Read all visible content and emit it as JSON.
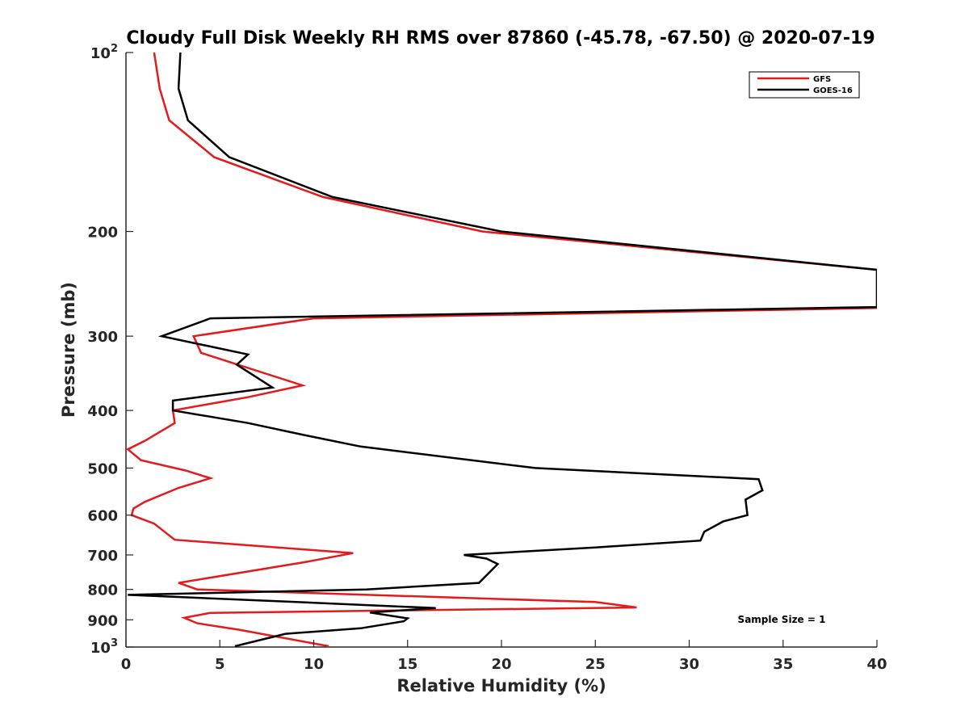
{
  "chart_data": {
    "type": "line",
    "title": "Cloudy Full Disk Weekly RH RMS over 87860 (-45.78, -67.50) @ 2020-07-19",
    "xlabel": "Relative Humidity (%)",
    "ylabel": "Pressure (mb)",
    "xlim": [
      0,
      40
    ],
    "ylim": [
      100,
      1000
    ],
    "yscale": "log",
    "y_direction": "reversed",
    "grid": false,
    "legend_position": "top-right",
    "x_ticks": [
      {
        "value": 0,
        "label": "0"
      },
      {
        "value": 5,
        "label": "5"
      },
      {
        "value": 10,
        "label": "10"
      },
      {
        "value": 15,
        "label": "15"
      },
      {
        "value": 20,
        "label": "20"
      },
      {
        "value": 25,
        "label": "25"
      },
      {
        "value": 30,
        "label": "30"
      },
      {
        "value": 35,
        "label": "35"
      },
      {
        "value": 40,
        "label": "40"
      }
    ],
    "y_ticks": [
      {
        "value": 100,
        "base": "10",
        "exp": "2"
      },
      {
        "value": 200,
        "base": "200",
        "exp": ""
      },
      {
        "value": 300,
        "base": "300",
        "exp": ""
      },
      {
        "value": 400,
        "base": "400",
        "exp": ""
      },
      {
        "value": 500,
        "base": "500",
        "exp": ""
      },
      {
        "value": 600,
        "base": "600",
        "exp": ""
      },
      {
        "value": 700,
        "base": "700",
        "exp": ""
      },
      {
        "value": 800,
        "base": "800",
        "exp": ""
      },
      {
        "value": 900,
        "base": "900",
        "exp": ""
      },
      {
        "value": 1000,
        "base": "10",
        "exp": "3"
      }
    ],
    "annotation": "Sample Size = 1",
    "series": [
      {
        "name": "GFS",
        "color": "#e41a1c",
        "points": [
          [
            1.5,
            100
          ],
          [
            1.8,
            115
          ],
          [
            2.3,
            130
          ],
          [
            4.7,
            150
          ],
          [
            10.5,
            175
          ],
          [
            19.0,
            200
          ],
          [
            40.0,
            232
          ],
          [
            40.0,
            269
          ],
          [
            10.0,
            280
          ],
          [
            3.6,
            300
          ],
          [
            4.0,
            320
          ],
          [
            9.4,
            363
          ],
          [
            6.5,
            380
          ],
          [
            2.5,
            400
          ],
          [
            2.6,
            420
          ],
          [
            1.0,
            450
          ],
          [
            0.1,
            465
          ],
          [
            0.8,
            485
          ],
          [
            3.2,
            505
          ],
          [
            4.5,
            520
          ],
          [
            2.8,
            540
          ],
          [
            1.0,
            570
          ],
          [
            0.4,
            585
          ],
          [
            0.3,
            600
          ],
          [
            1.5,
            620
          ],
          [
            2.6,
            660
          ],
          [
            12.1,
            695
          ],
          [
            9.5,
            720
          ],
          [
            2.8,
            780
          ],
          [
            3.8,
            800
          ],
          [
            25.0,
            840
          ],
          [
            27.2,
            858
          ],
          [
            4.5,
            876
          ],
          [
            3.1,
            893
          ],
          [
            3.8,
            912
          ],
          [
            6.0,
            935
          ],
          [
            10.8,
            997
          ]
        ]
      },
      {
        "name": "GOES-16",
        "color": "#000000",
        "points": [
          [
            2.9,
            100
          ],
          [
            2.8,
            115
          ],
          [
            3.3,
            130
          ],
          [
            5.5,
            150
          ],
          [
            11.0,
            175
          ],
          [
            20.0,
            200
          ],
          [
            40.0,
            232
          ],
          [
            40.0,
            268
          ],
          [
            4.5,
            280
          ],
          [
            1.9,
            300
          ],
          [
            6.5,
            322
          ],
          [
            5.9,
            335
          ],
          [
            7.8,
            366
          ],
          [
            2.5,
            385
          ],
          [
            2.5,
            400
          ],
          [
            6.5,
            420
          ],
          [
            9.5,
            440
          ],
          [
            12.5,
            460
          ],
          [
            21.8,
            500
          ],
          [
            33.7,
            522
          ],
          [
            33.9,
            545
          ],
          [
            33.0,
            565
          ],
          [
            33.1,
            600
          ],
          [
            31.8,
            615
          ],
          [
            30.8,
            640
          ],
          [
            30.6,
            662
          ],
          [
            25.0,
            680
          ],
          [
            18.0,
            700
          ],
          [
            19.2,
            710
          ],
          [
            19.8,
            725
          ],
          [
            18.8,
            780
          ],
          [
            12.8,
            800
          ],
          [
            0.1,
            817
          ],
          [
            11.0,
            845
          ],
          [
            16.5,
            860
          ],
          [
            13.0,
            875
          ],
          [
            15.0,
            895
          ],
          [
            14.8,
            905
          ],
          [
            12.5,
            930
          ],
          [
            8.5,
            950
          ],
          [
            5.8,
            997
          ]
        ]
      }
    ]
  }
}
